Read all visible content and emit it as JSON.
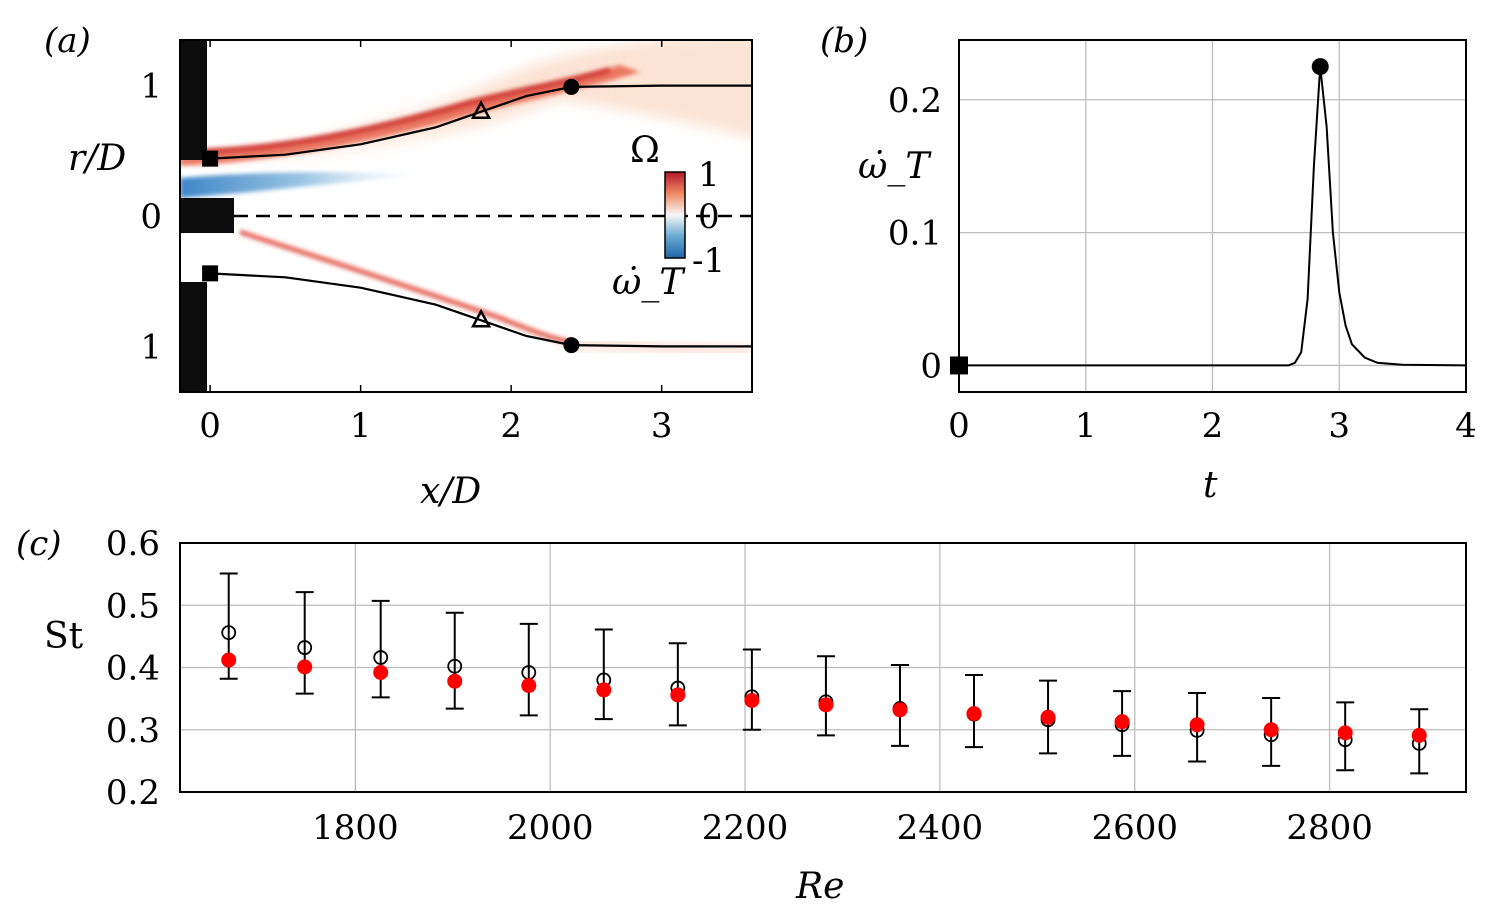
{
  "panels": {
    "a_label": "(a)",
    "b_label": "(b)",
    "c_label": "(c)"
  },
  "chart_data": [
    {
      "type": "heatmap",
      "panel": "(a)",
      "xlabel": "x/D",
      "ylabel": "r/D",
      "xlim": [
        -0.2,
        3.6
      ],
      "ylim": [
        -1.35,
        1.35
      ],
      "xticks": [
        "0",
        "1",
        "2",
        "3"
      ],
      "yticks": [
        "1",
        "0",
        "1"
      ],
      "colorbar": {
        "title": "Ω",
        "ticks": [
          "1",
          "0",
          "-1"
        ],
        "label": "ω̇_T"
      },
      "shear_layer_upper": {
        "x": [
          0,
          0.5,
          1.0,
          1.5,
          1.8,
          2.1,
          2.4,
          3.0,
          3.6
        ],
        "r": [
          0.44,
          0.47,
          0.55,
          0.68,
          0.8,
          0.92,
          0.99,
          1.0,
          1.0
        ]
      },
      "shear_layer_lower": {
        "x": [
          0,
          0.5,
          1.0,
          1.5,
          1.8,
          2.1,
          2.4,
          3.0,
          3.6
        ],
        "r": [
          -0.44,
          -0.47,
          -0.55,
          -0.68,
          -0.8,
          -0.92,
          -0.99,
          -1.0,
          -1.0
        ]
      },
      "markers": [
        {
          "symbol": "square",
          "x": 0,
          "r": 0.44
        },
        {
          "symbol": "triangle",
          "x": 1.8,
          "r": 0.8
        },
        {
          "symbol": "circle",
          "x": 2.4,
          "r": 0.99
        },
        {
          "symbol": "square",
          "x": 0,
          "r": -0.44
        },
        {
          "symbol": "triangle",
          "x": 1.8,
          "r": -0.8
        },
        {
          "symbol": "circle",
          "x": 2.4,
          "r": -0.99
        }
      ]
    },
    {
      "type": "line",
      "panel": "(b)",
      "xlabel": "t",
      "ylabel": "ω̇_T",
      "xlim": [
        0,
        4
      ],
      "ylim": [
        -0.02,
        0.245
      ],
      "xticks": [
        "0",
        "1",
        "2",
        "3",
        "4"
      ],
      "yticks": [
        "0",
        "0.1",
        "0.2"
      ],
      "series": [
        {
          "name": "omega_T",
          "x": [
            0,
            2.6,
            2.65,
            2.7,
            2.75,
            2.8,
            2.85,
            2.9,
            2.95,
            3.0,
            3.05,
            3.1,
            3.2,
            3.3,
            3.5,
            4.0
          ],
          "y": [
            0,
            0,
            0.002,
            0.01,
            0.05,
            0.15,
            0.225,
            0.18,
            0.1,
            0.055,
            0.03,
            0.016,
            0.006,
            0.002,
            0.0005,
            0
          ]
        }
      ],
      "markers": [
        {
          "symbol": "square",
          "x": 0,
          "y": 0
        },
        {
          "symbol": "circle",
          "x": 2.85,
          "y": 0.225
        }
      ]
    },
    {
      "type": "scatter",
      "panel": "(c)",
      "xlabel": "Re",
      "ylabel": "St",
      "xlim": [
        1620,
        2940
      ],
      "ylim": [
        0.2,
        0.6
      ],
      "xticks": [
        "1800",
        "2000",
        "2200",
        "2400",
        "2600",
        "2800"
      ],
      "yticks": [
        "0.2",
        "0.3",
        "0.4",
        "0.5",
        "0.6"
      ],
      "Re": [
        1670,
        1748,
        1826,
        1902,
        1978,
        2055,
        2131,
        2207,
        2283,
        2359,
        2435,
        2511,
        2587,
        2664,
        2740,
        2816,
        2892
      ],
      "series": [
        {
          "name": "open-circles",
          "values": [
            0.456,
            0.432,
            0.416,
            0.402,
            0.392,
            0.38,
            0.367,
            0.353,
            0.345,
            0.334,
            0.325,
            0.316,
            0.308,
            0.299,
            0.292,
            0.284,
            0.278
          ]
        },
        {
          "name": "red-circles",
          "values": [
            0.412,
            0.401,
            0.392,
            0.378,
            0.371,
            0.364,
            0.356,
            0.347,
            0.34,
            0.332,
            0.326,
            0.32,
            0.313,
            0.308,
            0.3,
            0.295,
            0.291
          ]
        }
      ],
      "error_low": [
        0.382,
        0.358,
        0.352,
        0.334,
        0.323,
        0.317,
        0.307,
        0.3,
        0.291,
        0.274,
        0.272,
        0.262,
        0.258,
        0.249,
        0.242,
        0.235,
        0.23
      ],
      "error_high": [
        0.551,
        0.521,
        0.507,
        0.488,
        0.47,
        0.461,
        0.439,
        0.429,
        0.418,
        0.404,
        0.388,
        0.379,
        0.362,
        0.359,
        0.351,
        0.344,
        0.333
      ]
    }
  ]
}
